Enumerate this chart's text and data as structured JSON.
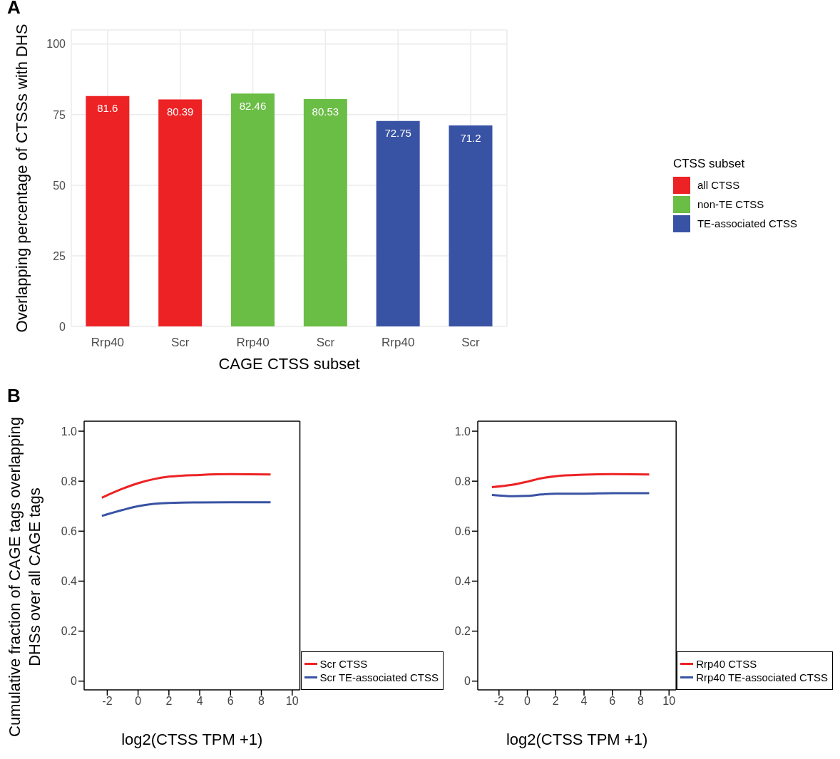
{
  "chart_data": [
    {
      "type": "bar",
      "stacked": true,
      "xlabel": "CAGE CTSS subset",
      "ylabel": "Overlapping percentage of CTSSs with DHS",
      "legend_title": "CTSS subset",
      "legend": "right",
      "grid": true,
      "data_labels": true,
      "annotations": [
        "A"
      ],
      "categories": [
        "Rrp40",
        "Scr",
        "Rrp40",
        "Scr",
        "Rrp40",
        "Scr"
      ],
      "ylim": [
        0,
        105
      ],
      "yticks": [
        0,
        25,
        50,
        75,
        100
      ],
      "series": [
        {
          "name": "all CTSS",
          "color": "#ed2224",
          "values": [
            81.6,
            80.39,
            null,
            null,
            null,
            null
          ]
        },
        {
          "name": "non-TE CTSS",
          "color": "#6abd45",
          "values": [
            null,
            null,
            82.46,
            80.53,
            null,
            null
          ]
        },
        {
          "name": "TE-associated CTSS",
          "color": "#3953a4",
          "values": [
            null,
            null,
            null,
            null,
            72.75,
            71.2
          ]
        }
      ]
    },
    {
      "type": "line",
      "xlabel": "log2(CTSS TPM +1)",
      "ylabel": "Cumulative fraction of CAGE tags overlapping\nDHSs over all CAGE tags",
      "legend": "bottom right",
      "annotations": [
        "B"
      ],
      "xlim": [
        -3.5,
        10.5
      ],
      "xticks": [
        -2,
        0,
        2,
        4,
        6,
        8,
        10
      ],
      "ylim": [
        -0.035,
        1.04
      ],
      "yticks": [
        0,
        0.2,
        0.4,
        0.6,
        0.8,
        {
          "value": 1,
          "label": "1.0"
        }
      ],
      "series": [
        {
          "name": "Scr CTSS",
          "color": "#ed2224",
          "x": [
            -2.35,
            -1,
            0,
            1,
            2,
            4,
            6,
            8.6
          ],
          "values": [
            0.734,
            0.77,
            0.792,
            0.808,
            0.818,
            0.825,
            0.828,
            0.827
          ]
        },
        {
          "name": "Scr TE-associated CTSS",
          "color": "#3953a4",
          "x": [
            -2.35,
            -1,
            0,
            1,
            2,
            4,
            6,
            8.6
          ],
          "values": [
            0.661,
            0.685,
            0.7,
            0.709,
            0.713,
            0.715,
            0.716,
            0.716
          ]
        }
      ]
    },
    {
      "type": "line",
      "xlabel": "log2(CTSS TPM +1)",
      "legend": "bottom right",
      "xlim": [
        -3.5,
        10.5
      ],
      "xticks": [
        -2,
        0,
        2,
        4,
        6,
        8,
        10
      ],
      "ylim": [
        -0.035,
        1.04
      ],
      "yticks": [
        0,
        0.2,
        0.4,
        0.6,
        0.8,
        {
          "value": 1,
          "label": "1.0"
        }
      ],
      "series": [
        {
          "name": "Rrp40 CTSS",
          "color": "#ed2224",
          "x": [
            -2.5,
            -1,
            0,
            1,
            2,
            4,
            6,
            8.6
          ],
          "values": [
            0.776,
            0.786,
            0.798,
            0.812,
            0.82,
            0.826,
            0.828,
            0.827
          ]
        },
        {
          "name": "Rrp40 TE-associated CTSS",
          "color": "#3953a4",
          "x": [
            -2.5,
            -1,
            0,
            1,
            2,
            4,
            6,
            8.6
          ],
          "values": [
            0.745,
            0.74,
            0.741,
            0.747,
            0.75,
            0.75,
            0.752,
            0.752
          ]
        }
      ]
    }
  ]
}
